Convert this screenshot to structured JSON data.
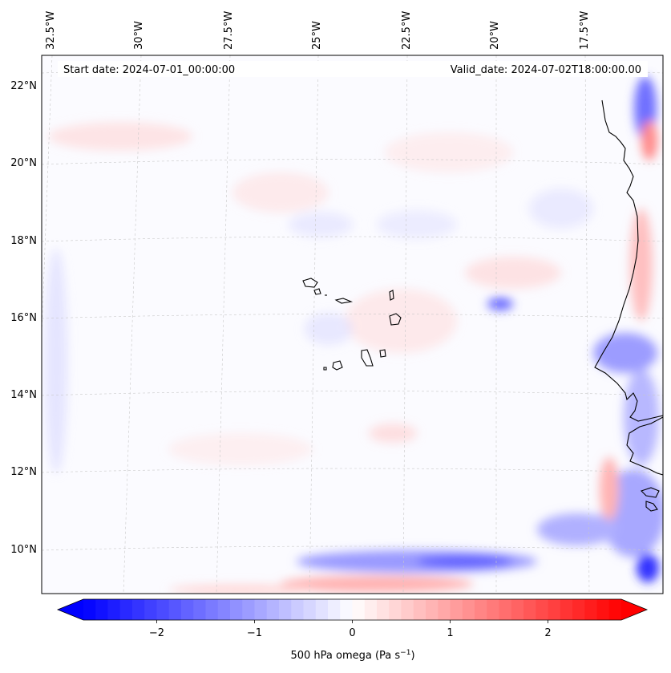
{
  "map": {
    "annotations": {
      "start_date": "Start date: 2024-07-01_00:00:00",
      "valid_date": "Valid_date: 2024-07-02T18:00:00.00"
    },
    "lon_labels": [
      "32.5°W",
      "30°W",
      "27.5°W",
      "25°W",
      "22.5°W",
      "20°W",
      "17.5°W"
    ],
    "lat_labels": [
      "22°N",
      "20°N",
      "18°N",
      "16°N",
      "14°N",
      "12°N",
      "10°N"
    ],
    "field": "500 hPa omega",
    "colors": {
      "negative": "#0000ff",
      "zero": "#ffffff",
      "positive": "#ff0000",
      "coast": "#000000",
      "grid": "#bbbbbb"
    }
  },
  "colorbar": {
    "label_prefix": "500 hPa omega (Pa s",
    "label_exp": "−1",
    "label_suffix": ")",
    "min": -2.75,
    "max": 2.75,
    "ticks": [
      {
        "value": -2,
        "label": "−2"
      },
      {
        "value": -1,
        "label": "−1"
      },
      {
        "value": 0,
        "label": "0"
      },
      {
        "value": 1,
        "label": "1"
      },
      {
        "value": 2,
        "label": "2"
      }
    ]
  }
}
